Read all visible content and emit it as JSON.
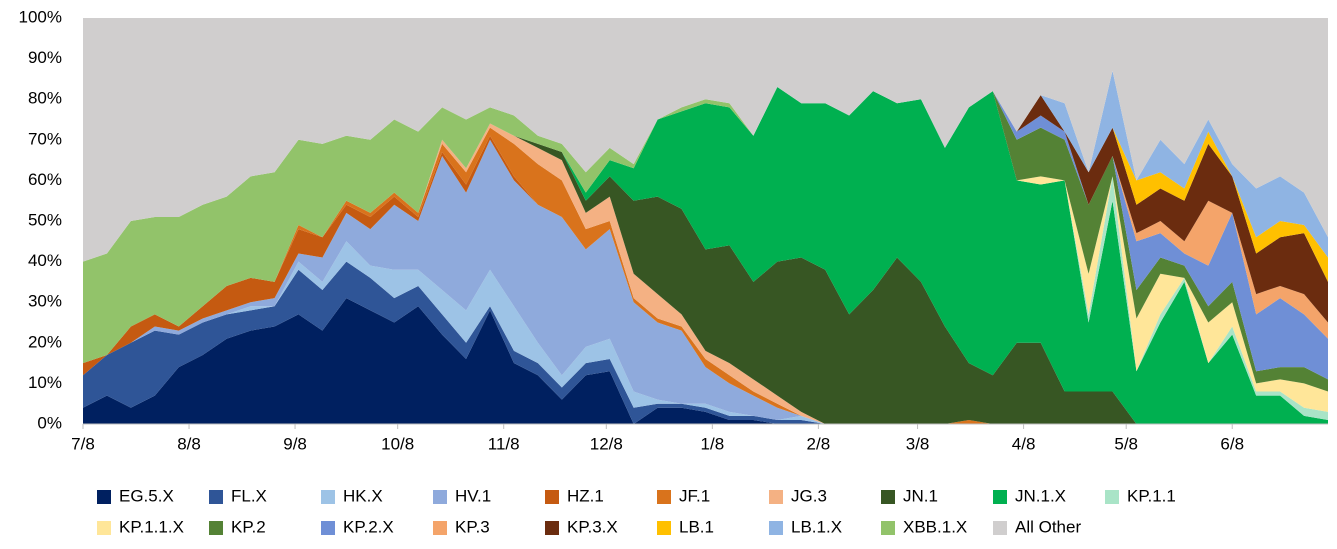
{
  "chart_data": {
    "type": "stacked_area",
    "x": [
      0,
      7,
      14,
      21,
      28,
      35,
      42,
      49,
      56,
      63,
      70,
      77,
      84,
      91,
      98,
      105,
      112,
      119,
      126,
      133,
      140,
      147,
      154,
      161,
      168,
      175,
      182,
      189,
      196,
      203,
      210,
      217,
      224,
      231,
      238,
      245,
      252,
      259,
      266,
      273,
      280,
      287,
      294,
      301,
      308,
      315,
      322,
      329,
      336,
      343,
      350,
      357,
      364
    ],
    "xlim": [
      0,
      364
    ],
    "xticks": [
      {
        "value": 0,
        "label": "7/8"
      },
      {
        "value": 31,
        "label": "8/8"
      },
      {
        "value": 62,
        "label": "9/8"
      },
      {
        "value": 92,
        "label": "10/8"
      },
      {
        "value": 123,
        "label": "11/8"
      },
      {
        "value": 153,
        "label": "12/8"
      },
      {
        "value": 184,
        "label": "1/8"
      },
      {
        "value": 215,
        "label": "2/8"
      },
      {
        "value": 244,
        "label": "3/8"
      },
      {
        "value": 275,
        "label": "4/8"
      },
      {
        "value": 305,
        "label": "5/8"
      },
      {
        "value": 336,
        "label": "6/8"
      }
    ],
    "ylim": [
      0,
      100
    ],
    "yticks": [
      {
        "value": 0,
        "label": "0%"
      },
      {
        "value": 10,
        "label": "10%"
      },
      {
        "value": 20,
        "label": "20%"
      },
      {
        "value": 30,
        "label": "30%"
      },
      {
        "value": 40,
        "label": "40%"
      },
      {
        "value": 50,
        "label": "50%"
      },
      {
        "value": 60,
        "label": "60%"
      },
      {
        "value": 70,
        "label": "70%"
      },
      {
        "value": 80,
        "label": "80%"
      },
      {
        "value": 90,
        "label": "90%"
      },
      {
        "value": 100,
        "label": "100%"
      }
    ],
    "legend": "bottom",
    "series": [
      {
        "name": "EG.5.X",
        "color": "#002060",
        "values": [
          4,
          7,
          4,
          7,
          14,
          17,
          21,
          23,
          24,
          27,
          23,
          31,
          28,
          25,
          29,
          22,
          16,
          28,
          15,
          12,
          6,
          12,
          13,
          0,
          4,
          4,
          3,
          1,
          1,
          0,
          0,
          0,
          0,
          0,
          0,
          0,
          0,
          0,
          0,
          0,
          0,
          0,
          0,
          0,
          0,
          0,
          0,
          0,
          0,
          0,
          0,
          0,
          0
        ]
      },
      {
        "name": "FL.X",
        "color": "#2f5597",
        "values": [
          8,
          10,
          16,
          16,
          8,
          8,
          6,
          5,
          5,
          11,
          10,
          9,
          8,
          6,
          5,
          5,
          4,
          1,
          3,
          3,
          3,
          3,
          3,
          4,
          1,
          1,
          1,
          1,
          1,
          1,
          1,
          0,
          0,
          0,
          0,
          0,
          0,
          0,
          0,
          0,
          0,
          0,
          0,
          0,
          0,
          0,
          0,
          0,
          0,
          0,
          0,
          0,
          0
        ]
      },
      {
        "name": "HK.X",
        "color": "#9dc3e6",
        "values": [
          0,
          0,
          0,
          0,
          0,
          0,
          0,
          1,
          0,
          2,
          2,
          5,
          3,
          7,
          4,
          6,
          8,
          9,
          11,
          5,
          3,
          4,
          5,
          4,
          1,
          0,
          1,
          1,
          0,
          0,
          1,
          0,
          0,
          0,
          0,
          0,
          0,
          0,
          0,
          0,
          0,
          0,
          0,
          0,
          0,
          0,
          0,
          0,
          0,
          0,
          0,
          0,
          0
        ]
      },
      {
        "name": "HV.1",
        "color": "#8faadc",
        "values": [
          0,
          0,
          0,
          1,
          1,
          1,
          1,
          1,
          2,
          2,
          6,
          7,
          9,
          16,
          12,
          33,
          29,
          32,
          31,
          34,
          39,
          24,
          27,
          22,
          19,
          18,
          9,
          7,
          5,
          3,
          0,
          0,
          0,
          0,
          0,
          0,
          0,
          0,
          0,
          0,
          0,
          0,
          0,
          0,
          0,
          0,
          0,
          0,
          0,
          0,
          0,
          0,
          0
        ]
      },
      {
        "name": "HZ.1",
        "color": "#c55a11",
        "values": [
          3,
          0,
          4,
          3,
          1,
          3,
          6,
          6,
          4,
          6,
          5,
          2,
          3,
          2,
          1,
          1,
          2,
          1,
          1,
          0,
          0,
          0,
          0,
          0,
          0,
          0,
          0,
          0,
          0,
          0,
          0,
          0,
          0,
          0,
          0,
          0,
          0,
          0,
          0,
          0,
          0,
          0,
          0,
          0,
          0,
          0,
          0,
          0,
          0,
          0,
          0,
          0,
          0
        ]
      },
      {
        "name": "JF.1",
        "color": "#d9731c",
        "values": [
          0,
          0,
          0,
          0,
          0,
          0,
          0,
          0,
          0,
          1,
          0,
          1,
          1,
          1,
          1,
          2,
          3,
          2,
          8,
          10,
          9,
          5,
          2,
          1,
          1,
          1,
          2,
          2,
          1,
          1,
          0,
          0,
          0,
          0,
          0,
          0,
          0,
          1,
          0,
          0,
          0,
          0,
          0,
          0,
          0,
          0,
          0,
          0,
          0,
          0,
          0,
          0,
          0
        ]
      },
      {
        "name": "JG.3",
        "color": "#f4b183",
        "values": [
          0,
          0,
          0,
          0,
          0,
          0,
          0,
          0,
          0,
          0,
          0,
          0,
          0,
          0,
          0,
          1,
          1,
          1,
          2,
          4,
          5,
          4,
          6,
          6,
          6,
          3,
          2,
          3,
          3,
          2,
          1,
          0,
          0,
          0,
          0,
          0,
          0,
          0,
          0,
          0,
          0,
          0,
          0,
          0,
          0,
          0,
          0,
          0,
          0,
          0,
          0,
          0,
          0
        ]
      },
      {
        "name": "JN.1",
        "color": "#375623",
        "values": [
          0,
          0,
          0,
          0,
          0,
          0,
          0,
          0,
          0,
          0,
          0,
          0,
          0,
          0,
          0,
          0,
          0,
          0,
          0,
          1,
          2,
          3,
          5,
          18,
          24,
          26,
          25,
          29,
          24,
          33,
          38,
          38,
          27,
          33,
          41,
          35,
          24,
          14,
          12,
          20,
          20,
          8,
          8,
          8,
          0,
          0,
          0,
          0,
          0,
          0,
          0,
          0,
          0
        ]
      },
      {
        "name": "JN.1.X",
        "color": "#00b050",
        "values": [
          0,
          0,
          0,
          0,
          0,
          0,
          0,
          0,
          0,
          0,
          0,
          0,
          0,
          0,
          0,
          0,
          0,
          0,
          0,
          0,
          0,
          2,
          4,
          8,
          19,
          24,
          36,
          34,
          36,
          43,
          38,
          41,
          49,
          49,
          38,
          45,
          44,
          63,
          70,
          40,
          39,
          52,
          17,
          47,
          13,
          25,
          35,
          15,
          22,
          7,
          7,
          2,
          1
        ]
      },
      {
        "name": "KP.1.1",
        "color": "#a9e4c7",
        "values": [
          0,
          0,
          0,
          0,
          0,
          0,
          0,
          0,
          0,
          0,
          0,
          0,
          0,
          0,
          0,
          0,
          0,
          0,
          0,
          0,
          0,
          0,
          0,
          0,
          0,
          0,
          0,
          0,
          0,
          0,
          0,
          0,
          0,
          0,
          0,
          0,
          0,
          0,
          0,
          0,
          0,
          0,
          2,
          6,
          0,
          2,
          1,
          0,
          2,
          1,
          1,
          2,
          2
        ]
      },
      {
        "name": "KP.1.1.X",
        "color": "#ffe699",
        "values": [
          0,
          0,
          0,
          0,
          0,
          0,
          0,
          0,
          0,
          0,
          0,
          0,
          0,
          0,
          0,
          0,
          0,
          0,
          0,
          0,
          0,
          0,
          0,
          0,
          0,
          0,
          0,
          0,
          0,
          0,
          0,
          0,
          0,
          0,
          0,
          0,
          0,
          0,
          0,
          0,
          2,
          0,
          10,
          0,
          13,
          10,
          0,
          10,
          6,
          2,
          3,
          6,
          5
        ]
      },
      {
        "name": "KP.2",
        "color": "#548235",
        "values": [
          0,
          0,
          0,
          0,
          0,
          0,
          0,
          0,
          0,
          0,
          0,
          0,
          0,
          0,
          0,
          0,
          0,
          0,
          0,
          0,
          0,
          0,
          0,
          0,
          0,
          0,
          0,
          0,
          0,
          0,
          0,
          0,
          0,
          0,
          0,
          0,
          0,
          0,
          0,
          10,
          12,
          10,
          17,
          5,
          7,
          4,
          3,
          4,
          5,
          3,
          3,
          4,
          3
        ]
      },
      {
        "name": "KP.2.X",
        "color": "#6f8fd6",
        "values": [
          0,
          0,
          0,
          0,
          0,
          0,
          0,
          0,
          0,
          0,
          0,
          0,
          0,
          0,
          0,
          0,
          0,
          0,
          0,
          0,
          0,
          0,
          0,
          0,
          0,
          0,
          0,
          0,
          0,
          0,
          0,
          0,
          0,
          0,
          0,
          0,
          0,
          0,
          0,
          2,
          3,
          2,
          0,
          0,
          12,
          6,
          3,
          10,
          17,
          14,
          17,
          13,
          10
        ]
      },
      {
        "name": "KP.3",
        "color": "#f4a46a",
        "values": [
          0,
          0,
          0,
          0,
          0,
          0,
          0,
          0,
          0,
          0,
          0,
          0,
          0,
          0,
          0,
          0,
          0,
          0,
          0,
          0,
          0,
          0,
          0,
          0,
          0,
          0,
          0,
          0,
          0,
          0,
          0,
          0,
          0,
          0,
          0,
          0,
          0,
          0,
          0,
          0,
          0,
          0,
          0,
          0,
          2,
          3,
          3,
          16,
          0,
          5,
          3,
          5,
          4
        ]
      },
      {
        "name": "KP.3.X",
        "color": "#6b2c0f",
        "values": [
          0,
          0,
          0,
          0,
          0,
          0,
          0,
          0,
          0,
          0,
          0,
          0,
          0,
          0,
          0,
          0,
          0,
          0,
          0,
          0,
          0,
          0,
          0,
          0,
          0,
          0,
          0,
          0,
          0,
          0,
          0,
          0,
          0,
          0,
          0,
          0,
          0,
          0,
          0,
          0,
          5,
          0,
          8,
          7,
          7,
          8,
          10,
          14,
          9,
          10,
          12,
          15,
          10
        ]
      },
      {
        "name": "LB.1",
        "color": "#ffc000",
        "values": [
          0,
          0,
          0,
          0,
          0,
          0,
          0,
          0,
          0,
          0,
          0,
          0,
          0,
          0,
          0,
          0,
          0,
          0,
          0,
          0,
          0,
          0,
          0,
          0,
          0,
          0,
          0,
          0,
          0,
          0,
          0,
          0,
          0,
          0,
          0,
          0,
          0,
          0,
          0,
          0,
          0,
          0,
          0,
          0,
          6,
          4,
          3,
          3,
          0,
          4,
          4,
          2,
          6
        ]
      },
      {
        "name": "LB.1.X",
        "color": "#8fb4e3",
        "values": [
          0,
          0,
          0,
          0,
          0,
          0,
          0,
          0,
          0,
          0,
          0,
          0,
          0,
          0,
          0,
          0,
          0,
          0,
          0,
          0,
          0,
          0,
          0,
          0,
          0,
          0,
          0,
          0,
          0,
          0,
          0,
          0,
          0,
          0,
          0,
          0,
          0,
          0,
          0,
          0,
          0,
          7,
          0,
          14,
          0,
          8,
          6,
          3,
          3,
          12,
          11,
          8,
          5
        ]
      },
      {
        "name": "XBB.1.X",
        "color": "#92c36a",
        "values": [
          25,
          25,
          26,
          24,
          27,
          25,
          22,
          25,
          27,
          21,
          23,
          16,
          18,
          18,
          20,
          8,
          12,
          4,
          5,
          2,
          2,
          5,
          3,
          1,
          0,
          1,
          1,
          1,
          0,
          0,
          0,
          0,
          0,
          0,
          0,
          0,
          0,
          0,
          0,
          0,
          0,
          0,
          0,
          0,
          0,
          0,
          0,
          0,
          0,
          0,
          0,
          0,
          0
        ]
      },
      {
        "name": "All Other",
        "color": "#d0cece",
        "values": [
          60,
          58,
          50,
          49,
          49,
          46,
          44,
          39,
          38,
          30,
          31,
          29,
          30,
          25,
          28,
          22,
          25,
          22,
          24,
          29,
          31,
          38,
          32,
          36,
          25,
          22,
          20,
          21,
          29,
          17,
          21,
          21,
          24,
          18,
          21,
          20,
          32,
          22,
          18,
          28,
          19,
          21,
          38,
          13,
          40,
          30,
          36,
          25,
          36,
          42,
          39,
          43,
          54
        ]
      }
    ]
  }
}
